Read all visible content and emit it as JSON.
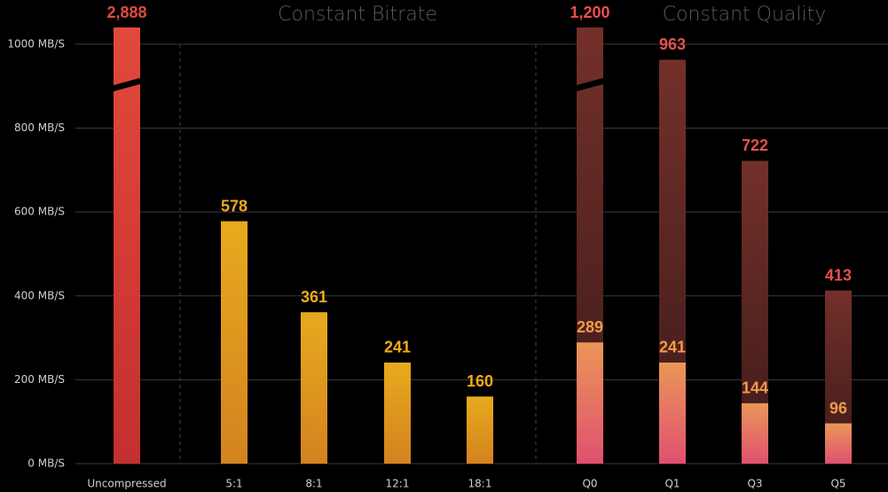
{
  "chart_data": {
    "type": "bar",
    "annotations": [
      "Constant Bitrate",
      "Constant Quality"
    ],
    "categories": [
      "Uncompressed",
      "5:1",
      "8:1",
      "12:1",
      "18:1",
      "Q0",
      "Q1",
      "Q3",
      "Q5"
    ],
    "series": [
      {
        "values": [
          2888,
          578,
          361,
          241,
          160,
          1200,
          963,
          722,
          413
        ],
        "value_labels": [
          "2,888",
          "578",
          "361",
          "241",
          "160",
          "1,200",
          "963",
          "722",
          "413"
        ],
        "colors": [
          [
            "#e2493c",
            "#c42f2f"
          ],
          [
            "#e8aa1e",
            "#d4821f"
          ],
          [
            "#e8aa1e",
            "#d4821f"
          ],
          [
            "#e8aa1e",
            "#d4821f"
          ],
          [
            "#e8aa1e",
            "#d4821f"
          ],
          [
            "#733029",
            "#3c1a1a"
          ],
          [
            "#733029",
            "#3c1a1a"
          ],
          [
            "#733029",
            "#3c1a1a"
          ],
          [
            "#733029",
            "#3c1a1a"
          ]
        ],
        "label_colors": [
          "#e24a3e",
          "#f0aa1a",
          "#f0aa1a",
          "#f0aa1a",
          "#f0aa1a",
          "#e8504c",
          "#e8504c",
          "#e8504c",
          "#e8504c"
        ]
      },
      {
        "values": [
          null,
          null,
          null,
          null,
          null,
          289,
          241,
          144,
          96
        ],
        "colors": [
          null,
          null,
          null,
          null,
          null,
          [
            "#ea9658",
            "#e0506f"
          ],
          [
            "#ea9658",
            "#e0506f"
          ],
          [
            "#ea9658",
            "#e0506f"
          ],
          [
            "#ea9658",
            "#e0506f"
          ]
        ],
        "label_colors": [
          null,
          null,
          null,
          null,
          null,
          "#f29a4e",
          "#f29a4e",
          "#f29a4e",
          "#f29a4e"
        ]
      }
    ],
    "ylim": [
      0,
      1040
    ],
    "yticks": [
      {
        "value": 0,
        "label": "0 MB/S"
      },
      {
        "value": 200,
        "label": "200 MB/S"
      },
      {
        "value": 400,
        "label": "400 MB/S"
      },
      {
        "value": 600,
        "label": "600 MB/S"
      },
      {
        "value": 800,
        "label": "800 MB/S"
      },
      {
        "value": 1000,
        "label": "1000 MB/S"
      }
    ],
    "grid": true,
    "axis_break": true
  }
}
